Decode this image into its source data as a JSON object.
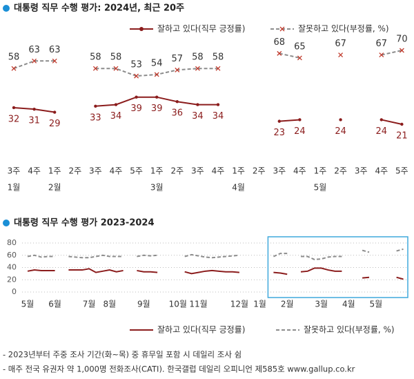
{
  "chart_data": [
    {
      "type": "line",
      "title": "대통령 직무 수행 평가: 2024년, 최근 20주",
      "data_labels": true,
      "categories": [
        "3주",
        "4주",
        "1주",
        "2주",
        "3주",
        "4주",
        "5주",
        "1주",
        "2주",
        "3주",
        "4주",
        "1주",
        "2주",
        "3주",
        "4주",
        "1주",
        "2주",
        "3주",
        "4주",
        "5주"
      ],
      "month_labels": [
        "1월",
        null,
        "2월",
        null,
        null,
        null,
        null,
        "3월",
        null,
        null,
        null,
        "4월",
        null,
        null,
        null,
        "5월",
        null,
        null,
        null,
        null
      ],
      "series": [
        {
          "name": "잘하고 있다(직무 긍정률)",
          "color": "#8b1c1c",
          "line_style": "solid",
          "marker": "circle",
          "marker_color": "#8b1c1c",
          "values": [
            32,
            31,
            29,
            null,
            33,
            34,
            39,
            39,
            36,
            34,
            34,
            null,
            null,
            23,
            24,
            null,
            24,
            null,
            24,
            21
          ]
        },
        {
          "name": "잘못하고 있다(부정률, %)",
          "color": "#8c8c8c",
          "line_style": "dashed",
          "marker": "x",
          "marker_color": "#c0392b",
          "values": [
            58,
            63,
            63,
            null,
            58,
            58,
            53,
            54,
            57,
            58,
            58,
            null,
            null,
            68,
            65,
            null,
            67,
            null,
            67,
            70
          ]
        }
      ]
    },
    {
      "type": "line",
      "title": "대통령 직무 수행 평가 2023-2024",
      "grid": true,
      "highlight_color": "#3fa9dc",
      "categories": [
        "5월",
        null,
        null,
        null,
        "6월",
        null,
        null,
        null,
        null,
        "7월",
        null,
        null,
        "8월",
        null,
        null,
        null,
        null,
        "9월",
        null,
        null,
        null,
        null,
        "10월",
        null,
        null,
        "11월",
        null,
        null,
        null,
        null,
        null,
        "12월",
        null,
        null,
        "1월",
        null,
        null,
        null,
        "2월",
        null,
        null,
        null,
        null,
        "3월",
        null,
        null,
        null,
        "4월",
        null,
        null,
        null,
        "5월",
        null,
        null,
        null,
        null
      ],
      "ylim": [
        0,
        80
      ],
      "yticks": [
        0,
        20,
        40,
        60,
        80
      ],
      "series": [
        {
          "name": "잘하고 있다(직무 긍정률)",
          "color": "#8b1c1c",
          "line_style": "solid",
          "values": [
            34,
            36,
            35,
            35,
            35,
            null,
            36,
            36,
            36,
            38,
            32,
            34,
            36,
            33,
            35,
            null,
            35,
            33,
            33,
            32,
            null,
            null,
            null,
            33,
            30,
            32,
            34,
            35,
            34,
            33,
            33,
            32,
            null,
            null,
            null,
            null,
            32,
            31,
            29,
            null,
            33,
            34,
            39,
            39,
            36,
            34,
            34,
            null,
            null,
            23,
            24,
            null,
            24,
            null,
            24,
            21
          ]
        },
        {
          "name": "잘못하고 있다(부정률, %)",
          "color": "#8c8c8c",
          "line_style": "dashed",
          "values": [
            58,
            60,
            57,
            58,
            58,
            null,
            58,
            57,
            56,
            56,
            58,
            60,
            58,
            58,
            58,
            null,
            58,
            60,
            59,
            60,
            null,
            null,
            null,
            58,
            61,
            59,
            57,
            56,
            57,
            58,
            59,
            60,
            null,
            null,
            null,
            null,
            58,
            63,
            63,
            null,
            58,
            58,
            53,
            54,
            57,
            58,
            58,
            null,
            null,
            68,
            65,
            null,
            67,
            null,
            67,
            70
          ]
        }
      ]
    }
  ],
  "notes": [
    "- 2023년부터 주중 조사 기간(화~목) 중 휴무일 포함 시 데일리 조사 쉼",
    "- 매주 전국 유권자 약 1,000명 전화조사(CATI). 한국갤럽 데일리 오피니언 제585호 www.gallup.co.kr"
  ]
}
